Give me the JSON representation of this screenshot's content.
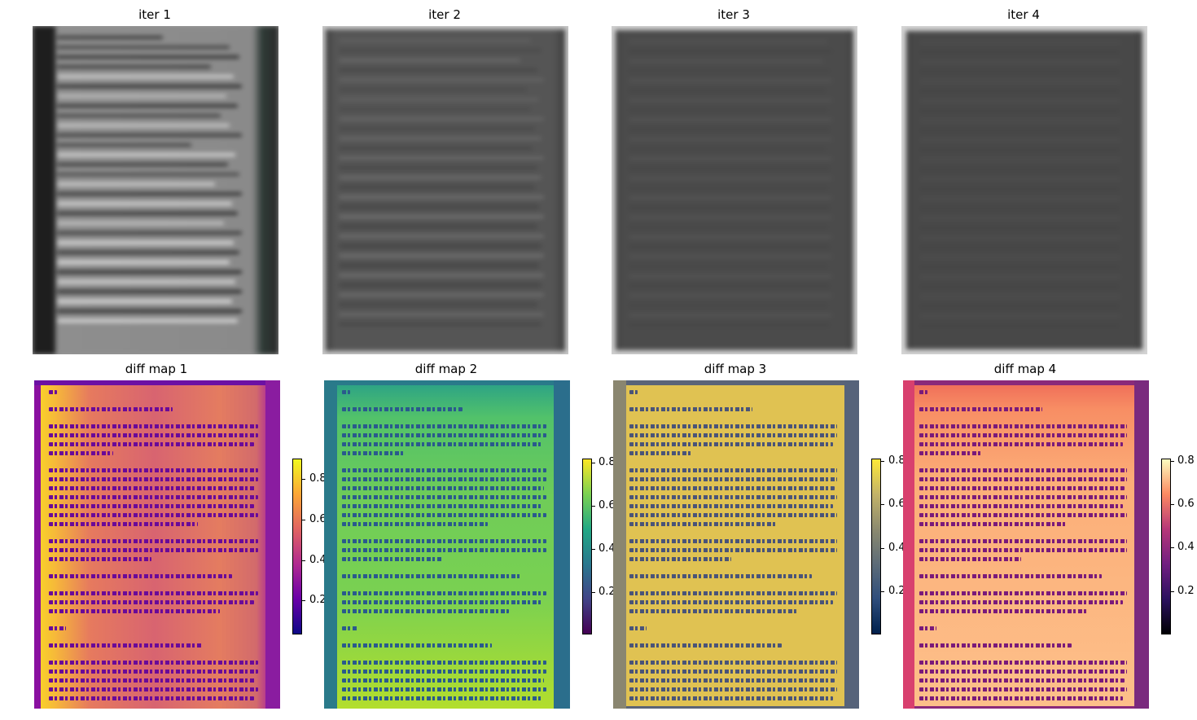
{
  "titles": {
    "iter": [
      "iter 1",
      "iter 2",
      "iter 3",
      "iter 4"
    ],
    "diff": [
      "diff map 1",
      "diff map 2",
      "diff map 3",
      "diff map 4"
    ]
  },
  "colorbars": [
    {
      "cmap": "plasma",
      "ticks": [
        "0.8",
        "0.6",
        "0.4",
        "0.2"
      ]
    },
    {
      "cmap": "viridis",
      "ticks": [
        "0.8",
        "0.6",
        "0.4",
        "0.2"
      ]
    },
    {
      "cmap": "cividis",
      "ticks": [
        "0.8",
        "0.6",
        "0.4",
        "0.2"
      ]
    },
    {
      "cmap": "magma",
      "ticks": [
        "0.8",
        "0.6",
        "0.4",
        "0.2"
      ]
    }
  ],
  "colors": {
    "plasma": [
      "#f0f921",
      "#fca636",
      "#e16462",
      "#b12a90",
      "#6a00a8",
      "#0d0887"
    ],
    "viridis": [
      "#fde725",
      "#7ad151",
      "#22a884",
      "#2a788e",
      "#414487",
      "#440154"
    ],
    "cividis": [
      "#fee838",
      "#c3b369",
      "#8c8a6f",
      "#5d6c78",
      "#2f4e7c",
      "#00204c"
    ],
    "magma": [
      "#fcfdbf",
      "#fc8961",
      "#b73779",
      "#721f81",
      "#2c115f",
      "#000004"
    ]
  }
}
